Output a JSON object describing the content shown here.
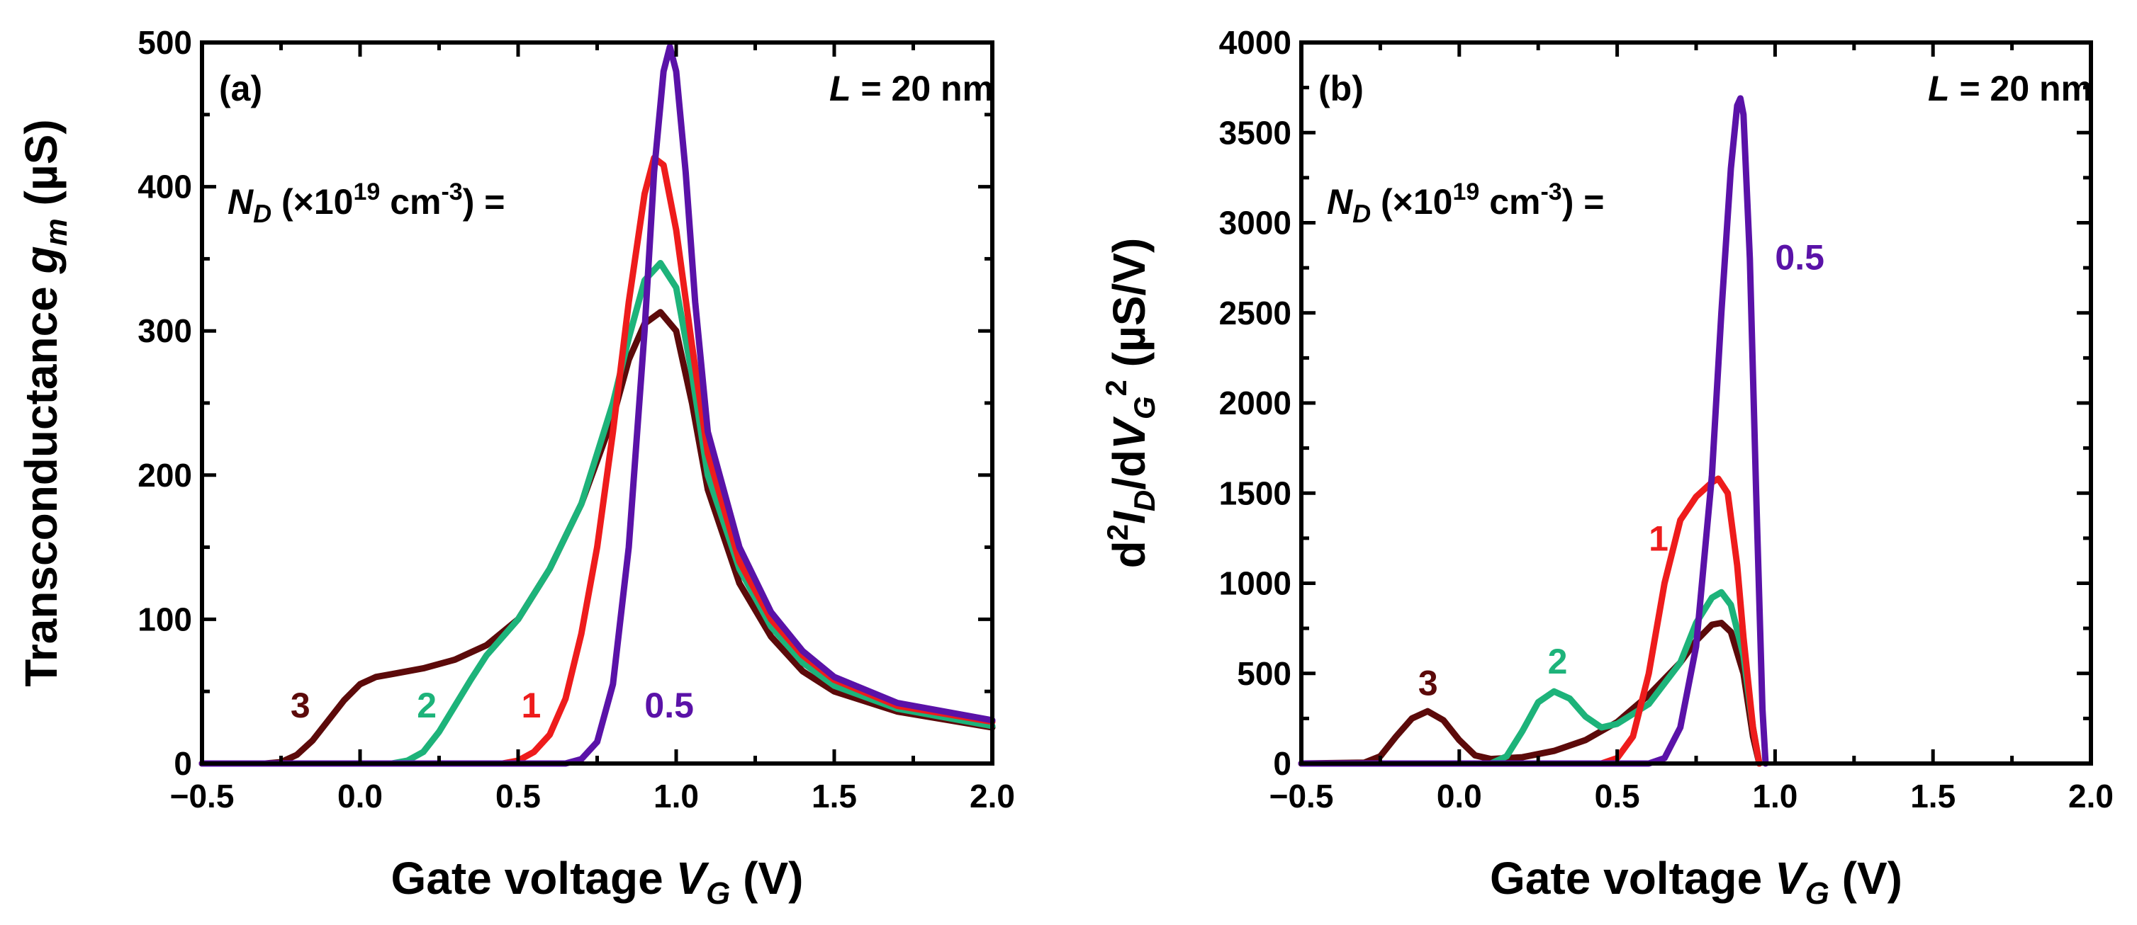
{
  "chart_data": [
    {
      "type": "line",
      "panel_label": "(a)",
      "annotation_length": {
        "symbol": "L",
        "text": " = 20 nm"
      },
      "annotation_doping": {
        "sym": "N",
        "sub": "D",
        "pre": " (×10",
        "exp1": "19",
        "mid": " cm",
        "exp2": "-3",
        "post": ") ="
      },
      "xlabel": {
        "text": "Gate voltage ",
        "sym": "V",
        "sub": "G",
        "unit": " (V)"
      },
      "ylabel": {
        "text": "Transconductance ",
        "sym": "g",
        "sub": "m",
        "unit": " (µS)"
      },
      "xlim": [
        -0.5,
        2.0
      ],
      "ylim": [
        0,
        500
      ],
      "xticks": [
        "−0.5",
        "0.0",
        "0.5",
        "1.0",
        "1.5",
        "2.0"
      ],
      "xtick_values": [
        -0.5,
        0.0,
        0.5,
        1.0,
        1.5,
        2.0
      ],
      "yticks": [
        "0",
        "100",
        "200",
        "300",
        "400",
        "500"
      ],
      "ytick_values": [
        0,
        100,
        200,
        300,
        400,
        500
      ],
      "series": [
        {
          "name": "3",
          "color": "#5c0a0a",
          "x": [
            -0.5,
            -0.3,
            -0.25,
            -0.2,
            -0.15,
            -0.1,
            -0.05,
            0.0,
            0.05,
            0.1,
            0.2,
            0.3,
            0.4,
            0.5,
            0.6,
            0.7,
            0.8,
            0.85,
            0.9,
            0.95,
            1.0,
            1.05,
            1.1,
            1.2,
            1.3,
            1.4,
            1.5,
            1.7,
            2.0
          ],
          "y": [
            0,
            0,
            1,
            6,
            16,
            30,
            44,
            55,
            60,
            62,
            66,
            72,
            82,
            100,
            135,
            180,
            240,
            280,
            305,
            313,
            300,
            250,
            190,
            125,
            88,
            64,
            50,
            36,
            25
          ]
        },
        {
          "name": "2",
          "color": "#1db37a",
          "x": [
            -0.5,
            0.1,
            0.15,
            0.2,
            0.25,
            0.3,
            0.35,
            0.4,
            0.5,
            0.6,
            0.7,
            0.8,
            0.85,
            0.9,
            0.95,
            1.0,
            1.05,
            1.1,
            1.2,
            1.3,
            1.4,
            1.5,
            1.7,
            2.0
          ],
          "y": [
            0,
            0,
            2,
            8,
            22,
            40,
            58,
            75,
            100,
            135,
            180,
            250,
            295,
            335,
            347,
            330,
            270,
            200,
            135,
            95,
            70,
            54,
            38,
            26
          ]
        },
        {
          "name": "1",
          "color": "#ee1c1c",
          "x": [
            -0.5,
            0.45,
            0.5,
            0.55,
            0.6,
            0.65,
            0.7,
            0.75,
            0.8,
            0.85,
            0.9,
            0.93,
            0.96,
            1.0,
            1.05,
            1.1,
            1.2,
            1.3,
            1.4,
            1.5,
            1.7,
            2.0
          ],
          "y": [
            0,
            0,
            2,
            8,
            20,
            45,
            90,
            150,
            230,
            320,
            395,
            420,
            415,
            370,
            290,
            215,
            140,
            100,
            75,
            58,
            40,
            29
          ]
        },
        {
          "name": "0.5",
          "color": "#5a12a8",
          "x": [
            -0.5,
            0.65,
            0.7,
            0.75,
            0.8,
            0.85,
            0.9,
            0.93,
            0.96,
            0.98,
            1.0,
            1.03,
            1.06,
            1.1,
            1.2,
            1.3,
            1.4,
            1.5,
            1.7,
            2.0
          ],
          "y": [
            0,
            0,
            3,
            15,
            55,
            150,
            300,
            410,
            480,
            497,
            480,
            410,
            320,
            230,
            150,
            105,
            78,
            60,
            42,
            30
          ]
        }
      ],
      "curve_labels": [
        {
          "text": "3",
          "color": "#5c0a0a",
          "x": -0.22,
          "y": 32
        },
        {
          "text": "2",
          "color": "#1db37a",
          "x": 0.18,
          "y": 32
        },
        {
          "text": "1",
          "color": "#ee1c1c",
          "x": 0.51,
          "y": 32
        },
        {
          "text": "0.5",
          "color": "#5a12a8",
          "x": 0.9,
          "y": 32
        }
      ]
    },
    {
      "type": "line",
      "panel_label": "(b)",
      "annotation_length": {
        "symbol": "L",
        "text": " = 20 nm"
      },
      "annotation_doping": {
        "sym": "N",
        "sub": "D",
        "pre": " (×10",
        "exp1": "19",
        "mid": " cm",
        "exp2": "-3",
        "post": ") ="
      },
      "xlabel": {
        "text": "Gate voltage ",
        "sym": "V",
        "sub": "G",
        "unit": " (V)"
      },
      "ylabel": {
        "t1": "d",
        "e1": "2",
        "t2": "I",
        "s2": "D",
        "t3": "/d",
        "t4": "V",
        "s4": "G",
        "e4": "2",
        "unit": " (µS/V)"
      },
      "xlim": [
        -0.5,
        2.0
      ],
      "ylim": [
        0,
        4000
      ],
      "xticks": [
        "−0.5",
        "0.0",
        "0.5",
        "1.0",
        "1.5",
        "2.0"
      ],
      "xtick_values": [
        -0.5,
        0.0,
        0.5,
        1.0,
        1.5,
        2.0
      ],
      "yticks": [
        "0",
        "500",
        "1000",
        "1500",
        "2000",
        "2500",
        "3000",
        "3500",
        "4000"
      ],
      "ytick_values": [
        0,
        500,
        1000,
        1500,
        2000,
        2500,
        3000,
        3500,
        4000
      ],
      "series": [
        {
          "name": "3",
          "color": "#5c0a0a",
          "x": [
            -0.5,
            -0.3,
            -0.25,
            -0.2,
            -0.15,
            -0.1,
            -0.05,
            0.0,
            0.05,
            0.1,
            0.2,
            0.3,
            0.4,
            0.5,
            0.6,
            0.7,
            0.75,
            0.8,
            0.83,
            0.86,
            0.9,
            0.93,
            0.95
          ],
          "y": [
            0,
            5,
            40,
            150,
            250,
            290,
            240,
            130,
            45,
            25,
            35,
            70,
            130,
            230,
            380,
            560,
            680,
            770,
            780,
            730,
            500,
            150,
            0
          ]
        },
        {
          "name": "2",
          "color": "#1db37a",
          "x": [
            -0.5,
            0.1,
            0.15,
            0.2,
            0.25,
            0.3,
            0.35,
            0.4,
            0.45,
            0.5,
            0.6,
            0.7,
            0.75,
            0.8,
            0.83,
            0.86,
            0.9,
            0.93,
            0.95
          ],
          "y": [
            0,
            0,
            40,
            180,
            340,
            400,
            360,
            260,
            200,
            220,
            330,
            560,
            780,
            920,
            950,
            880,
            600,
            200,
            0
          ]
        },
        {
          "name": "1",
          "color": "#ee1c1c",
          "x": [
            -0.5,
            0.45,
            0.5,
            0.55,
            0.6,
            0.65,
            0.7,
            0.75,
            0.8,
            0.82,
            0.85,
            0.88,
            0.9,
            0.93,
            0.95
          ],
          "y": [
            0,
            0,
            30,
            150,
            500,
            1000,
            1350,
            1480,
            1560,
            1580,
            1500,
            1100,
            700,
            200,
            0
          ]
        },
        {
          "name": "0.5",
          "color": "#5a12a8",
          "x": [
            -0.5,
            0.6,
            0.65,
            0.7,
            0.75,
            0.8,
            0.83,
            0.86,
            0.88,
            0.89,
            0.9,
            0.92,
            0.94,
            0.96,
            0.97
          ],
          "y": [
            0,
            0,
            30,
            200,
            650,
            1600,
            2500,
            3300,
            3650,
            3690,
            3600,
            2800,
            1500,
            300,
            0
          ]
        }
      ],
      "curve_labels": [
        {
          "text": "3",
          "color": "#5c0a0a",
          "x": -0.13,
          "y": 380
        },
        {
          "text": "2",
          "color": "#1db37a",
          "x": 0.28,
          "y": 500
        },
        {
          "text": "1",
          "color": "#ee1c1c",
          "x": 0.6,
          "y": 1180
        },
        {
          "text": "0.5",
          "color": "#5a12a8",
          "x": 1.0,
          "y": 2740
        }
      ]
    }
  ]
}
